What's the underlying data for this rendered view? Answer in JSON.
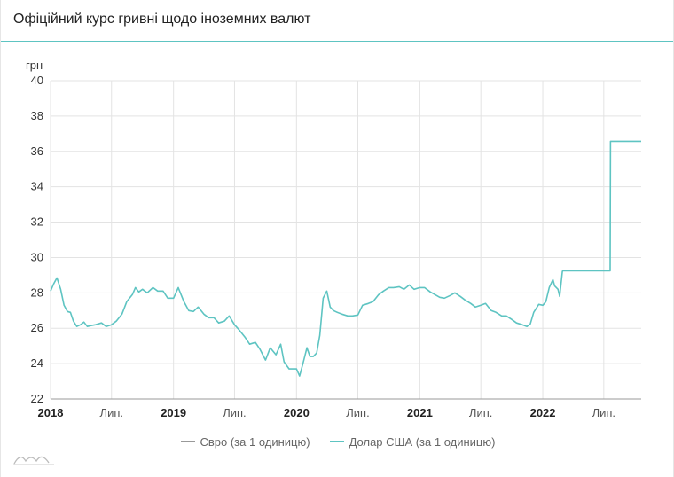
{
  "title": "Офіційний курс гривні щодо іноземних валют",
  "colors": {
    "accent": "#5ec4c2",
    "euro": "#999999",
    "usd": "#5ec4c2"
  },
  "legend": {
    "euro": "Євро (за 1 одиницю)",
    "usd": "Долар США (за 1 одиницю)"
  },
  "chart_data": {
    "type": "line",
    "ylabel": "грн",
    "ylim": [
      22,
      40
    ],
    "yticks": [
      22,
      24,
      26,
      28,
      30,
      32,
      34,
      36,
      38,
      40
    ],
    "xlim": [
      "2018-01-01",
      "2022-10-20"
    ],
    "xticks": [
      {
        "date": "2018-01-01",
        "label": "2018",
        "bold": true
      },
      {
        "date": "2018-07-01",
        "label": "Лип.",
        "bold": false
      },
      {
        "date": "2019-01-01",
        "label": "2019",
        "bold": true
      },
      {
        "date": "2019-07-01",
        "label": "Лип.",
        "bold": false
      },
      {
        "date": "2020-01-01",
        "label": "2020",
        "bold": true
      },
      {
        "date": "2020-07-01",
        "label": "Лип.",
        "bold": false
      },
      {
        "date": "2021-01-01",
        "label": "2021",
        "bold": true
      },
      {
        "date": "2021-07-01",
        "label": "Лип.",
        "bold": false
      },
      {
        "date": "2022-01-01",
        "label": "2022",
        "bold": true
      },
      {
        "date": "2022-07-01",
        "label": "Лип.",
        "bold": false
      }
    ],
    "grid": true,
    "legend_position": "bottom-center",
    "series": [
      {
        "name": "Євро (за 1 одиницю)",
        "points": []
      },
      {
        "name": "Долар США (за 1 одиницю)",
        "points": [
          [
            "2018-01-01",
            28.1
          ],
          [
            "2018-01-10",
            28.5
          ],
          [
            "2018-01-20",
            28.85
          ],
          [
            "2018-01-31",
            28.2
          ],
          [
            "2018-02-10",
            27.3
          ],
          [
            "2018-02-20",
            26.95
          ],
          [
            "2018-03-01",
            26.9
          ],
          [
            "2018-03-10",
            26.4
          ],
          [
            "2018-03-20",
            26.1
          ],
          [
            "2018-03-31",
            26.2
          ],
          [
            "2018-04-10",
            26.35
          ],
          [
            "2018-04-20",
            26.1
          ],
          [
            "2018-05-01",
            26.15
          ],
          [
            "2018-05-15",
            26.2
          ],
          [
            "2018-06-01",
            26.3
          ],
          [
            "2018-06-15",
            26.1
          ],
          [
            "2018-07-01",
            26.2
          ],
          [
            "2018-07-15",
            26.4
          ],
          [
            "2018-08-01",
            26.8
          ],
          [
            "2018-08-15",
            27.5
          ],
          [
            "2018-09-01",
            27.9
          ],
          [
            "2018-09-10",
            28.3
          ],
          [
            "2018-09-20",
            28.05
          ],
          [
            "2018-10-01",
            28.2
          ],
          [
            "2018-10-15",
            28.0
          ],
          [
            "2018-11-01",
            28.3
          ],
          [
            "2018-11-15",
            28.1
          ],
          [
            "2018-12-01",
            28.1
          ],
          [
            "2018-12-15",
            27.7
          ],
          [
            "2019-01-01",
            27.7
          ],
          [
            "2019-01-15",
            28.3
          ],
          [
            "2019-02-01",
            27.5
          ],
          [
            "2019-02-15",
            27.0
          ],
          [
            "2019-03-01",
            26.95
          ],
          [
            "2019-03-15",
            27.2
          ],
          [
            "2019-04-01",
            26.8
          ],
          [
            "2019-04-15",
            26.6
          ],
          [
            "2019-05-01",
            26.6
          ],
          [
            "2019-05-15",
            26.3
          ],
          [
            "2019-06-01",
            26.4
          ],
          [
            "2019-06-15",
            26.7
          ],
          [
            "2019-07-01",
            26.2
          ],
          [
            "2019-07-15",
            25.9
          ],
          [
            "2019-08-01",
            25.5
          ],
          [
            "2019-08-15",
            25.1
          ],
          [
            "2019-09-01",
            25.2
          ],
          [
            "2019-09-15",
            24.8
          ],
          [
            "2019-10-01",
            24.2
          ],
          [
            "2019-10-15",
            24.9
          ],
          [
            "2019-11-01",
            24.5
          ],
          [
            "2019-11-15",
            25.1
          ],
          [
            "2019-11-25",
            24.1
          ],
          [
            "2019-12-10",
            23.7
          ],
          [
            "2019-12-25",
            23.7
          ],
          [
            "2020-01-01",
            23.7
          ],
          [
            "2020-01-10",
            23.3
          ],
          [
            "2020-01-20",
            24.0
          ],
          [
            "2020-02-01",
            24.9
          ],
          [
            "2020-02-10",
            24.4
          ],
          [
            "2020-02-20",
            24.4
          ],
          [
            "2020-03-01",
            24.6
          ],
          [
            "2020-03-10",
            25.6
          ],
          [
            "2020-03-20",
            27.7
          ],
          [
            "2020-03-31",
            28.1
          ],
          [
            "2020-04-10",
            27.2
          ],
          [
            "2020-04-20",
            27.0
          ],
          [
            "2020-05-01",
            26.9
          ],
          [
            "2020-05-15",
            26.8
          ],
          [
            "2020-06-01",
            26.7
          ],
          [
            "2020-06-15",
            26.7
          ],
          [
            "2020-07-01",
            26.75
          ],
          [
            "2020-07-15",
            27.3
          ],
          [
            "2020-08-01",
            27.4
          ],
          [
            "2020-08-15",
            27.5
          ],
          [
            "2020-09-01",
            27.9
          ],
          [
            "2020-09-15",
            28.1
          ],
          [
            "2020-10-01",
            28.3
          ],
          [
            "2020-10-15",
            28.3
          ],
          [
            "2020-11-01",
            28.35
          ],
          [
            "2020-11-15",
            28.2
          ],
          [
            "2020-12-01",
            28.45
          ],
          [
            "2020-12-15",
            28.2
          ],
          [
            "2021-01-01",
            28.3
          ],
          [
            "2021-01-15",
            28.3
          ],
          [
            "2021-02-01",
            28.05
          ],
          [
            "2021-02-15",
            27.9
          ],
          [
            "2021-03-01",
            27.75
          ],
          [
            "2021-03-15",
            27.7
          ],
          [
            "2021-04-01",
            27.85
          ],
          [
            "2021-04-15",
            28.0
          ],
          [
            "2021-05-01",
            27.8
          ],
          [
            "2021-05-15",
            27.6
          ],
          [
            "2021-06-01",
            27.4
          ],
          [
            "2021-06-15",
            27.2
          ],
          [
            "2021-07-01",
            27.3
          ],
          [
            "2021-07-15",
            27.4
          ],
          [
            "2021-08-01",
            27.0
          ],
          [
            "2021-08-15",
            26.9
          ],
          [
            "2021-09-01",
            26.7
          ],
          [
            "2021-09-15",
            26.7
          ],
          [
            "2021-10-01",
            26.5
          ],
          [
            "2021-10-15",
            26.3
          ],
          [
            "2021-11-01",
            26.2
          ],
          [
            "2021-11-15",
            26.1
          ],
          [
            "2021-11-25",
            26.25
          ],
          [
            "2021-12-05",
            26.9
          ],
          [
            "2021-12-20",
            27.35
          ],
          [
            "2022-01-01",
            27.3
          ],
          [
            "2022-01-10",
            27.5
          ],
          [
            "2022-01-20",
            28.3
          ],
          [
            "2022-01-31",
            28.75
          ],
          [
            "2022-02-05",
            28.4
          ],
          [
            "2022-02-15",
            28.2
          ],
          [
            "2022-02-20",
            27.8
          ],
          [
            "2022-02-28",
            29.2
          ],
          [
            "2022-03-01",
            29.25
          ],
          [
            "2022-07-20",
            29.25
          ],
          [
            "2022-07-21",
            36.57
          ],
          [
            "2022-10-20",
            36.57
          ]
        ]
      }
    ]
  }
}
